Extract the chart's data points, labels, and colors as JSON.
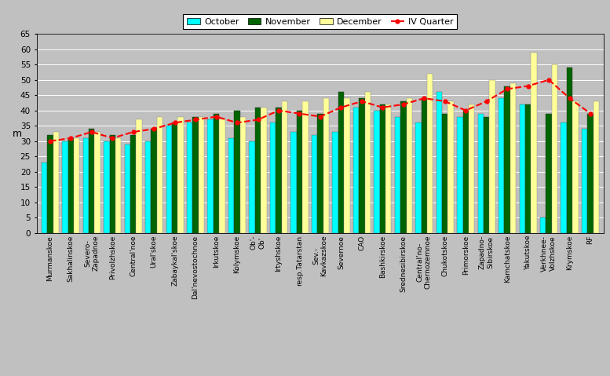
{
  "categories": [
    "Murmanskoe",
    "Sakhalinskoe",
    "Severo-\nZapadnoe",
    "Privolzhskoe",
    "Central'noe",
    "Ural'skoe",
    "Zabaykal'skoe",
    "Dal'nevostochnoe",
    "Irkutskoe",
    "Kolymskoe",
    "Ob'-\nOb'",
    "Irtyshskoe",
    "resp.Tatarstan",
    "Sev.-\nKavkazskoe",
    "Severnoe",
    "CAO",
    "Bashkirskoe",
    "Srednesibirskoe",
    "Central'no-\nChernozemnoe",
    "Chukotskoe",
    "Primorskoe",
    "Zapadno-\nSibirskoe",
    "Kamchatskoe",
    "Yakutskoe",
    "Verkhnee-\nVolzhskoe",
    "Krymskoe",
    "RF"
  ],
  "october": [
    23,
    30,
    31,
    30,
    29,
    30,
    35,
    36,
    37,
    31,
    30,
    36,
    33,
    32,
    33,
    41,
    40,
    38,
    36,
    46,
    38,
    39,
    44,
    42,
    5,
    36,
    34
  ],
  "november": [
    32,
    31,
    34,
    32,
    32,
    34,
    36,
    38,
    39,
    40,
    41,
    41,
    40,
    39,
    46,
    44,
    42,
    43,
    44,
    39,
    40,
    38,
    48,
    42,
    39,
    54,
    39
  ],
  "december": [
    33,
    31,
    33,
    31,
    37,
    38,
    38,
    38,
    37,
    38,
    41,
    43,
    43,
    44,
    44,
    46,
    42,
    44,
    52,
    43,
    42,
    50,
    49,
    59,
    55,
    43,
    43
  ],
  "iv_quarter": [
    30,
    31,
    33,
    31,
    33,
    34,
    36,
    37,
    38,
    36,
    37,
    40,
    39,
    38,
    41,
    43,
    41,
    42,
    44,
    43,
    40,
    43,
    47,
    48,
    50,
    44,
    39
  ],
  "bar_color_october": "#00FFFF",
  "bar_color_november": "#006400",
  "bar_color_december": "#FFFF99",
  "line_color_iv": "#FF0000",
  "bg_color": "#C0C0C0",
  "fig_bg_color": "#C0C0C0",
  "ylabel": "m",
  "ylim": [
    0,
    65
  ],
  "yticks": [
    0,
    5,
    10,
    15,
    20,
    25,
    30,
    35,
    40,
    45,
    50,
    55,
    60,
    65
  ],
  "legend_labels": [
    "October",
    "November",
    "December",
    "IV Quarter"
  ]
}
